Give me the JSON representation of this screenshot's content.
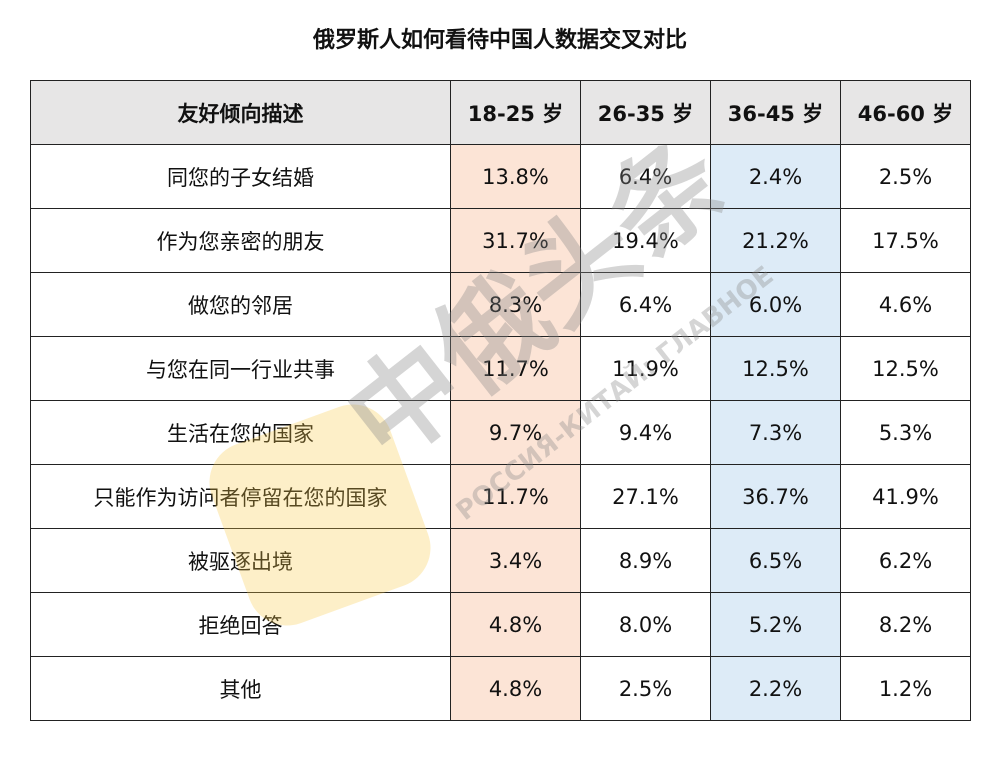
{
  "title": "俄罗斯人如何看待中国人数据交叉对比",
  "table": {
    "header": [
      "友好倾向描述",
      "18-25 岁",
      "26-35 岁",
      "36-45 岁",
      "46-60 岁"
    ],
    "rows": [
      [
        "同您的子女结婚",
        "13.8%",
        "6.4%",
        "2.4%",
        "2.5%"
      ],
      [
        "作为您亲密的朋友",
        "31.7%",
        "19.4%",
        "21.2%",
        "17.5%"
      ],
      [
        "做您的邻居",
        "8.3%",
        "6.4%",
        "6.0%",
        "4.6%"
      ],
      [
        "与您在同一行业共事",
        "11.7%",
        "11.9%",
        "12.5%",
        "12.5%"
      ],
      [
        "生活在您的国家",
        "9.7%",
        "9.4%",
        "7.3%",
        "5.3%"
      ],
      [
        "只能作为访问者停留在您的国家",
        "11.7%",
        "27.1%",
        "36.7%",
        "41.9%"
      ],
      [
        "被驱逐出境",
        "3.4%",
        "8.9%",
        "6.5%",
        "6.2%"
      ],
      [
        "拒绝回答",
        "4.8%",
        "8.0%",
        "5.2%",
        "8.2%"
      ],
      [
        "其他",
        "4.8%",
        "2.5%",
        "2.2%",
        "1.2%"
      ]
    ]
  },
  "watermark": {
    "brand": "中俄头条",
    "tagline": "РОССИЯ-КИТАЙ: ГЛАВНОЕ"
  }
}
